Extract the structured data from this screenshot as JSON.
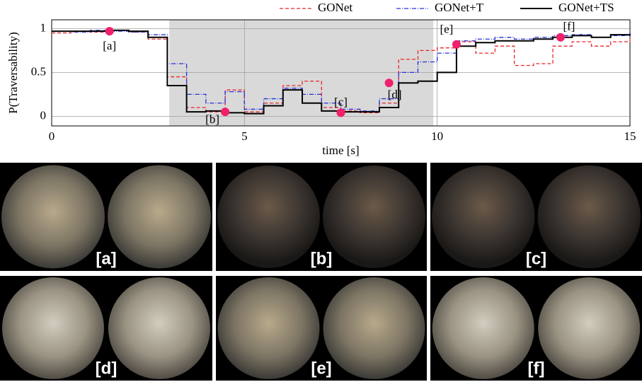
{
  "chart_data": {
    "type": "step",
    "xlabel": "time [s]",
    "ylabel": "P(Traversability)",
    "xlim": [
      0,
      15
    ],
    "ylim": [
      -0.11,
      1.1
    ],
    "xticks": [
      0,
      5,
      10,
      15
    ],
    "yticks": [
      0,
      0.5,
      1
    ],
    "grid": true,
    "shaded": [
      3.05,
      9.9
    ],
    "x": [
      0,
      0.5,
      1,
      1.5,
      2,
      2.5,
      3,
      3.5,
      4,
      4.5,
      5,
      5.5,
      6,
      6.5,
      7,
      7.5,
      8,
      8.5,
      9,
      9.5,
      10,
      10.5,
      11,
      11.5,
      12,
      12.5,
      13,
      13.5,
      14,
      14.5,
      15
    ],
    "series": [
      {
        "name": "GONet",
        "color": "#e8262a",
        "dash": "5,3",
        "values": [
          0.95,
          0.97,
          0.96,
          0.98,
          0.96,
          0.88,
          0.45,
          0.1,
          0.05,
          0.3,
          0.05,
          0.15,
          0.35,
          0.4,
          0.1,
          0.06,
          0.04,
          0.15,
          0.65,
          0.75,
          0.78,
          0.85,
          0.72,
          0.8,
          0.58,
          0.6,
          0.8,
          0.85,
          0.8,
          0.85,
          0.98
        ]
      },
      {
        "name": "GONet+T",
        "color": "#2630d8",
        "dash": "6,2,1,2",
        "values": [
          0.97,
          0.96,
          0.98,
          0.97,
          0.96,
          0.93,
          0.6,
          0.25,
          0.15,
          0.28,
          0.08,
          0.2,
          0.32,
          0.25,
          0.15,
          0.08,
          0.06,
          0.2,
          0.5,
          0.62,
          0.72,
          0.86,
          0.88,
          0.9,
          0.88,
          0.9,
          0.92,
          0.93,
          0.9,
          0.92,
          0.96
        ]
      },
      {
        "name": "GONet+TS",
        "color": "#000000",
        "dash": "",
        "values": [
          0.97,
          0.97,
          0.97,
          0.98,
          0.97,
          0.9,
          0.35,
          0.05,
          0.06,
          0.04,
          0.03,
          0.12,
          0.3,
          0.15,
          0.06,
          0.05,
          0.05,
          0.1,
          0.38,
          0.4,
          0.5,
          0.8,
          0.84,
          0.86,
          0.86,
          0.88,
          0.9,
          0.92,
          0.9,
          0.93,
          0.94
        ]
      }
    ],
    "markers": [
      {
        "label": "[a]",
        "x": 1.5,
        "y": 0.97
      },
      {
        "label": "[b]",
        "x": 4.5,
        "y": 0.05
      },
      {
        "label": "[c]",
        "x": 7.5,
        "y": 0.04
      },
      {
        "label": "[d]",
        "x": 8.75,
        "y": 0.38
      },
      {
        "label": "[e]",
        "x": 10.5,
        "y": 0.82
      },
      {
        "label": "[f]",
        "x": 13.2,
        "y": 0.9
      }
    ],
    "marker_color": "#f0206a"
  },
  "panels": {
    "labels": [
      "[a]",
      "[b]",
      "[c]",
      "[d]",
      "[e]",
      "[f]"
    ]
  }
}
